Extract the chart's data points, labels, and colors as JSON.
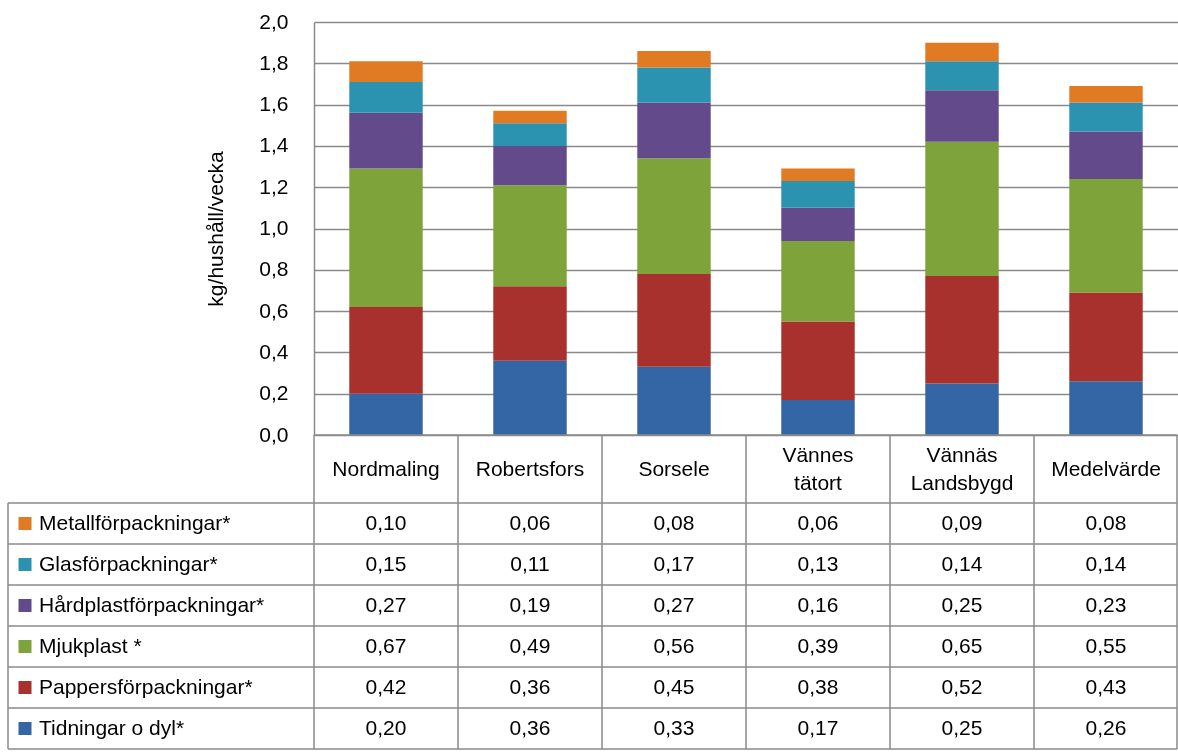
{
  "chart_data": {
    "type": "bar",
    "stacked": true,
    "ylabel": "kg/hushåll/vecka",
    "categories": [
      "Nordmaling",
      "Robertsfors",
      "Sorsele",
      "Vännes tätort",
      "Vännäs Landsbygd",
      "Medelvärde"
    ],
    "series": [
      {
        "name": "Tidningar o dyl*",
        "color": "#3465a4",
        "values": [
          0.2,
          0.36,
          0.33,
          0.17,
          0.25,
          0.26
        ],
        "value_labels": [
          "0,20",
          "0,36",
          "0,33",
          "0,17",
          "0,25",
          "0,26"
        ]
      },
      {
        "name": "Pappersförpackningar*",
        "color": "#a8302d",
        "values": [
          0.42,
          0.36,
          0.45,
          0.38,
          0.52,
          0.43
        ],
        "value_labels": [
          "0,42",
          "0,36",
          "0,45",
          "0,38",
          "0,52",
          "0,43"
        ]
      },
      {
        "name": "Mjukplast *",
        "color": "#7ea33b",
        "values": [
          0.67,
          0.49,
          0.56,
          0.39,
          0.65,
          0.55
        ],
        "value_labels": [
          "0,67",
          "0,49",
          "0,56",
          "0,39",
          "0,65",
          "0,55"
        ]
      },
      {
        "name": "Hårdplastförpackningar*",
        "color": "#634a8b",
        "values": [
          0.27,
          0.19,
          0.27,
          0.16,
          0.25,
          0.23
        ],
        "value_labels": [
          "0,27",
          "0,19",
          "0,27",
          "0,16",
          "0,25",
          "0,23"
        ]
      },
      {
        "name": "Glasförpackningar*",
        "color": "#2b93b0",
        "values": [
          0.15,
          0.11,
          0.17,
          0.13,
          0.14,
          0.14
        ],
        "value_labels": [
          "0,15",
          "0,11",
          "0,17",
          "0,13",
          "0,14",
          "0,14"
        ]
      },
      {
        "name": "Metallförpackningar*",
        "color": "#e07b24",
        "values": [
          0.1,
          0.06,
          0.08,
          0.06,
          0.09,
          0.08
        ],
        "value_labels": [
          "0,10",
          "0,06",
          "0,08",
          "0,06",
          "0,09",
          "0,08"
        ]
      }
    ],
    "ylim": [
      0,
      2
    ],
    "yticks": [
      {
        "value": 0,
        "label": "0,0"
      },
      {
        "value": 0.2,
        "label": "0,2"
      },
      {
        "value": 0.4,
        "label": "0,4"
      },
      {
        "value": 0.6,
        "label": "0,6"
      },
      {
        "value": 0.8,
        "label": "0,8"
      },
      {
        "value": 1,
        "label": "1,0"
      },
      {
        "value": 1.2,
        "label": "1,2"
      },
      {
        "value": 1.4,
        "label": "1,4"
      },
      {
        "value": 1.6,
        "label": "1,6"
      },
      {
        "value": 1.8,
        "label": "1,8"
      },
      {
        "value": 2,
        "label": "2,0"
      }
    ],
    "grid": "y",
    "legend": "bottom left"
  }
}
